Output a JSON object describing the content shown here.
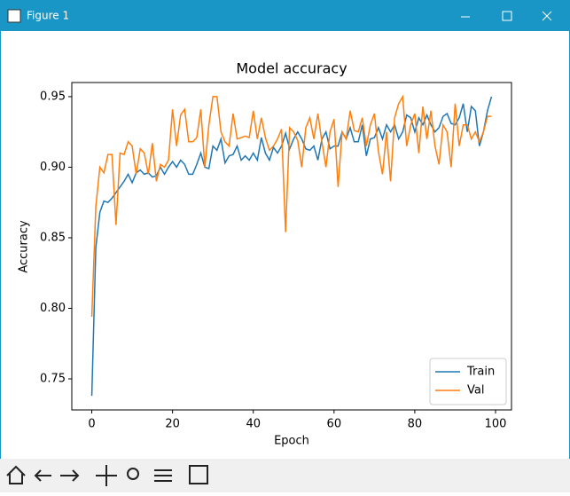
{
  "window_title": "Figure 1",
  "chart_data": {
    "type": "line",
    "title": "Model accuracy",
    "x_label": "Epoch",
    "y_label": "Accuracy",
    "x": [
      0,
      1,
      2,
      3,
      4,
      5,
      6,
      7,
      8,
      9,
      10,
      11,
      12,
      13,
      14,
      15,
      16,
      17,
      18,
      19,
      20,
      21,
      22,
      23,
      24,
      25,
      26,
      27,
      28,
      29,
      30,
      31,
      32,
      33,
      34,
      35,
      36,
      37,
      38,
      39,
      40,
      41,
      42,
      43,
      44,
      45,
      46,
      47,
      48,
      49,
      50,
      51,
      52,
      53,
      54,
      55,
      56,
      57,
      58,
      59,
      60,
      61,
      62,
      63,
      64,
      65,
      66,
      67,
      68,
      69,
      70,
      71,
      72,
      73,
      74,
      75,
      76,
      77,
      78,
      79,
      80,
      81,
      82,
      83,
      84,
      85,
      86,
      87,
      88,
      89,
      90,
      91,
      92,
      93,
      94,
      95,
      96,
      97,
      98,
      99
    ],
    "series": [
      {
        "name": "Train",
        "color": "#1f77b4",
        "values": [
          0.738,
          0.843,
          0.868,
          0.876,
          0.875,
          0.878,
          0.882,
          0.886,
          0.89,
          0.895,
          0.889,
          0.896,
          0.898,
          0.895,
          0.896,
          0.893,
          0.894,
          0.9,
          0.895,
          0.9,
          0.904,
          0.9,
          0.905,
          0.902,
          0.895,
          0.895,
          0.902,
          0.91,
          0.9,
          0.899,
          0.915,
          0.912,
          0.92,
          0.903,
          0.908,
          0.909,
          0.915,
          0.905,
          0.908,
          0.905,
          0.91,
          0.905,
          0.921,
          0.91,
          0.905,
          0.914,
          0.91,
          0.915,
          0.924,
          0.913,
          0.92,
          0.925,
          0.92,
          0.913,
          0.912,
          0.915,
          0.905,
          0.92,
          0.925,
          0.913,
          0.915,
          0.915,
          0.925,
          0.92,
          0.928,
          0.918,
          0.918,
          0.93,
          0.908,
          0.92,
          0.921,
          0.928,
          0.92,
          0.93,
          0.925,
          0.93,
          0.92,
          0.925,
          0.937,
          0.935,
          0.925,
          0.935,
          0.93,
          0.937,
          0.93,
          0.925,
          0.928,
          0.936,
          0.938,
          0.931,
          0.93,
          0.935,
          0.945,
          0.925,
          0.943,
          0.94,
          0.915,
          0.925,
          0.94,
          0.95
        ]
      },
      {
        "name": "Val",
        "color": "#ff7f0e",
        "values": [
          0.794,
          0.872,
          0.9,
          0.896,
          0.909,
          0.909,
          0.859,
          0.91,
          0.909,
          0.918,
          0.915,
          0.895,
          0.913,
          0.91,
          0.895,
          0.917,
          0.89,
          0.902,
          0.9,
          0.905,
          0.941,
          0.915,
          0.937,
          0.941,
          0.918,
          0.918,
          0.921,
          0.941,
          0.9,
          0.93,
          0.95,
          0.95,
          0.925,
          0.918,
          0.915,
          0.938,
          0.92,
          0.921,
          0.922,
          0.921,
          0.94,
          0.92,
          0.935,
          0.921,
          0.912,
          0.915,
          0.92,
          0.927,
          0.854,
          0.928,
          0.925,
          0.919,
          0.9,
          0.928,
          0.935,
          0.92,
          0.938,
          0.918,
          0.9,
          0.925,
          0.934,
          0.886,
          0.925,
          0.92,
          0.94,
          0.926,
          0.925,
          0.935,
          0.915,
          0.93,
          0.938,
          0.911,
          0.895,
          0.925,
          0.89,
          0.935,
          0.945,
          0.95,
          0.915,
          0.93,
          0.938,
          0.91,
          0.943,
          0.92,
          0.94,
          0.915,
          0.902,
          0.93,
          0.925,
          0.9,
          0.945,
          0.915,
          0.93,
          0.93,
          0.92,
          0.925,
          0.918,
          0.925,
          0.936,
          0.936
        ]
      }
    ],
    "xlim": [
      -4.95,
      103.95
    ],
    "xticks": [
      0,
      20,
      40,
      60,
      80,
      100
    ],
    "ylim": [
      0.728,
      0.96
    ],
    "yticks": [
      0.75,
      {
        "value": 0.8,
        "label": "0.80"
      },
      0.85,
      {
        "value": 0.9,
        "label": "0.90"
      },
      0.95
    ],
    "legend": "lower right",
    "grid": false
  }
}
